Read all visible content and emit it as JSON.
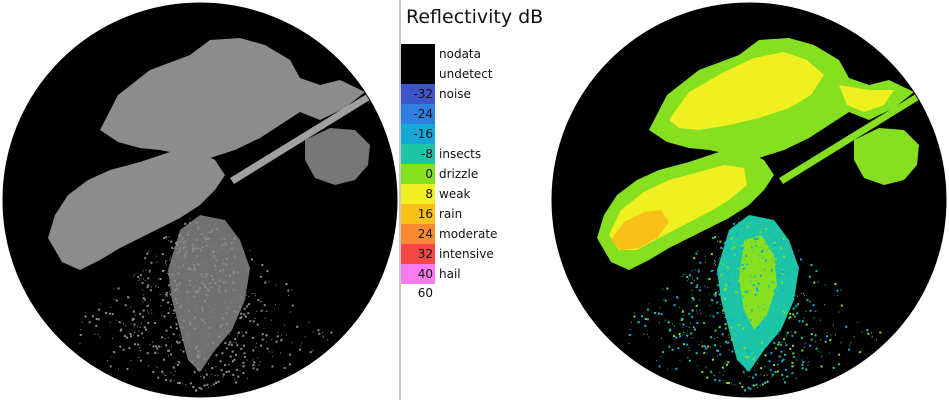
{
  "legend": {
    "title": "Reflectivity dB",
    "bins": [
      {
        "tick": "",
        "color": "#000000",
        "category": "nodata"
      },
      {
        "tick": "",
        "color": "#000000",
        "category": "undetect"
      },
      {
        "tick": "-32",
        "color": "#3d55c8",
        "category": "noise"
      },
      {
        "tick": "-24",
        "color": "#2e7fe0",
        "category": ""
      },
      {
        "tick": "-16",
        "color": "#14a8d8",
        "category": ""
      },
      {
        "tick": "-8",
        "color": "#1cc4a8",
        "category": "insects"
      },
      {
        "tick": "0",
        "color": "#86e020",
        "category": "drizzle"
      },
      {
        "tick": "8",
        "color": "#f0f020",
        "category": "weak"
      },
      {
        "tick": "16",
        "color": "#f8c018",
        "category": "rain"
      },
      {
        "tick": "24",
        "color": "#fc8a30",
        "category": "moderate"
      },
      {
        "tick": "32",
        "color": "#f64848",
        "category": "intensive"
      },
      {
        "tick": "40",
        "color": "#f87cf0",
        "category": "hail"
      }
    ],
    "end_tick": "60"
  },
  "radar": {
    "background_color": "#000000",
    "gray_echo_color": "#8c8c8c"
  }
}
